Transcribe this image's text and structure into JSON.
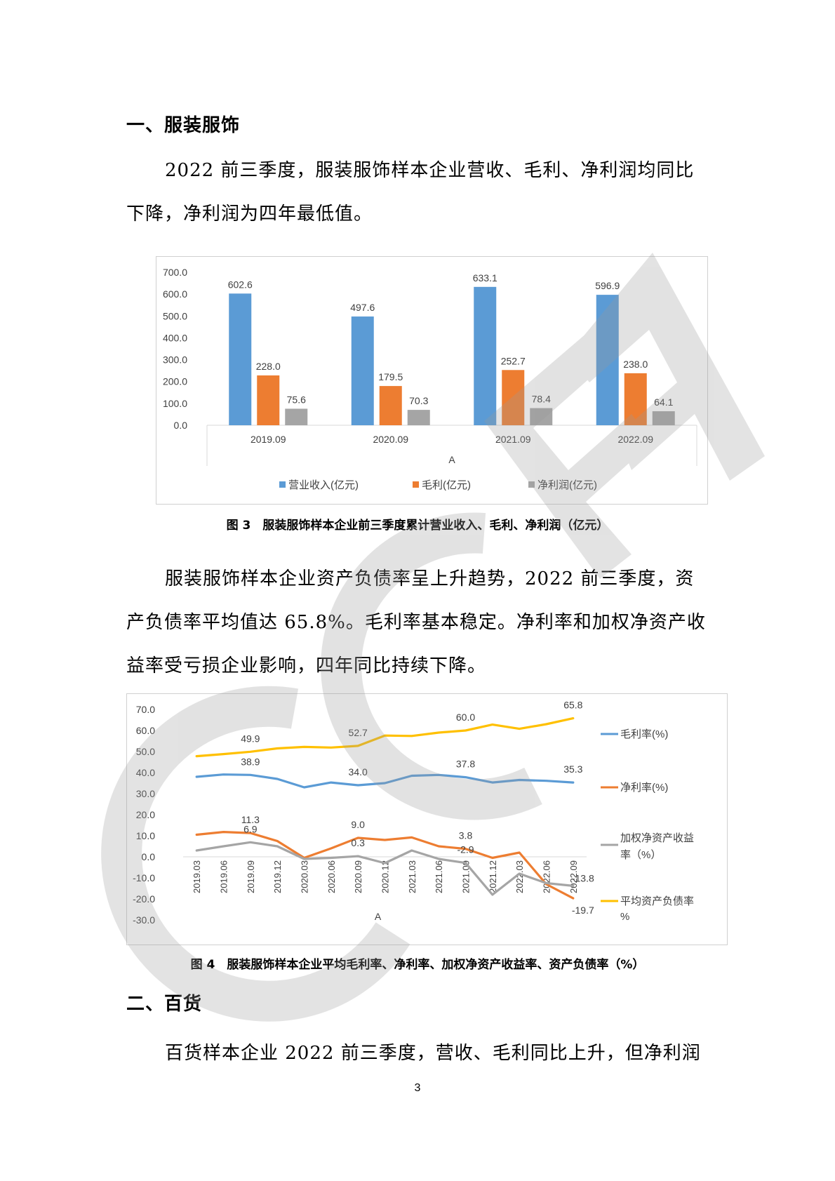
{
  "section1": {
    "heading": "一、服装服饰",
    "para1": [
      "2022 前三季度，服装服饰样本企业营收、毛利、净利润均同比",
      "下降，净利润为四年最低值。"
    ],
    "para2": [
      "服装服饰样本企业资产负债率呈上升趋势，2022 前三季度，资",
      "产负债率平均值达 65.8%。毛利率基本稳定。净利率和加权净资产收",
      "益率受亏损企业影响，四年同比持续下降。"
    ]
  },
  "figure3": {
    "caption": "图 3　服装服饰样本企业前三季度累计营业收入、毛利、净利润（亿元）"
  },
  "figure4": {
    "caption": "图 4　服装服饰样本企业平均毛利率、净利率、加权净资产收益率、资产负债率（%）"
  },
  "section2": {
    "heading": "二、百货",
    "para1": [
      "百货样本企业 2022 前三季度，营收、毛利同比上升，但净利润"
    ]
  },
  "page_number": "3",
  "watermark_text": "CCFA",
  "colors": {
    "blue": "#5b9bd5",
    "orange": "#ed7d31",
    "gray": "#a5a5a5",
    "yellow": "#ffc000"
  },
  "chart_data": [
    {
      "type": "bar",
      "categories": [
        "2019.09",
        "2020.09",
        "2021.09",
        "2022.09"
      ],
      "series": [
        {
          "name": "营业收入(亿元)",
          "values": [
            602.6,
            497.6,
            633.1,
            596.9
          ],
          "color": "#5b9bd5"
        },
        {
          "name": "毛利(亿元)",
          "values": [
            228.0,
            179.5,
            252.7,
            238.0
          ],
          "color": "#ed7d31"
        },
        {
          "name": "净利润(亿元)",
          "values": [
            75.6,
            70.3,
            78.4,
            64.1
          ],
          "color": "#a5a5a5"
        }
      ],
      "yticks": [
        "0.0",
        "100.0",
        "200.0",
        "300.0",
        "400.0",
        "500.0",
        "600.0",
        "700.0"
      ],
      "ylim": [
        0,
        700
      ],
      "xlabel": "A",
      "legend_position": "bottom"
    },
    {
      "type": "line",
      "x": [
        "2019.03",
        "2019.06",
        "2019.09",
        "2019.12",
        "2020.03",
        "2020.06",
        "2020.09",
        "2020.12",
        "2021.03",
        "2021.06",
        "2021.09",
        "2021.12",
        "2022.03",
        "2022.06",
        "2022.09"
      ],
      "series": [
        {
          "name": "毛利率(%)",
          "color": "#5b9bd5",
          "values": [
            38.0,
            39.1,
            38.9,
            37.0,
            33.0,
            35.3,
            34.0,
            35.0,
            38.5,
            38.9,
            37.8,
            35.3,
            36.5,
            36.1,
            35.3
          ],
          "labels": {
            "2": "38.9",
            "6": "34.0",
            "10": "37.8",
            "14": "35.3"
          }
        },
        {
          "name": "净利率(%)",
          "color": "#ed7d31",
          "values": [
            10.5,
            11.8,
            11.3,
            7.5,
            -0.5,
            4.0,
            9.0,
            8.0,
            9.2,
            5.0,
            3.8,
            -0.5,
            2.0,
            -13.0,
            -19.7
          ],
          "labels": {
            "2": "11.3",
            "6": "9.0",
            "10": "3.8",
            "14": "-19.7"
          }
        },
        {
          "name": "加权净资产收益率（%）",
          "color": "#a5a5a5",
          "values": [
            3.0,
            5.0,
            6.9,
            5.0,
            -1.0,
            -0.5,
            0.3,
            -3.0,
            3.0,
            -1.0,
            -2.9,
            -18.0,
            -8.0,
            -12.5,
            -13.8
          ],
          "labels": {
            "2": "6.9",
            "6": "0.3",
            "10": "-2.9",
            "14": "-13.8"
          }
        },
        {
          "name": "平均资产负债率%",
          "color": "#ffc000",
          "values": [
            47.8,
            48.8,
            49.9,
            51.5,
            52.2,
            51.9,
            52.7,
            57.6,
            57.4,
            59.0,
            60.0,
            62.8,
            60.8,
            63.0,
            65.8
          ],
          "labels": {
            "2": "49.9",
            "6": "52.7",
            "10": "60.0",
            "14": "65.8"
          }
        }
      ],
      "yticks": [
        "-30.0",
        "-20.0",
        "-10.0",
        "0.0",
        "10.0",
        "20.0",
        "30.0",
        "40.0",
        "50.0",
        "60.0",
        "70.0"
      ],
      "ylim": [
        -30,
        70
      ],
      "xlabel": "A",
      "legend_position": "right"
    }
  ]
}
